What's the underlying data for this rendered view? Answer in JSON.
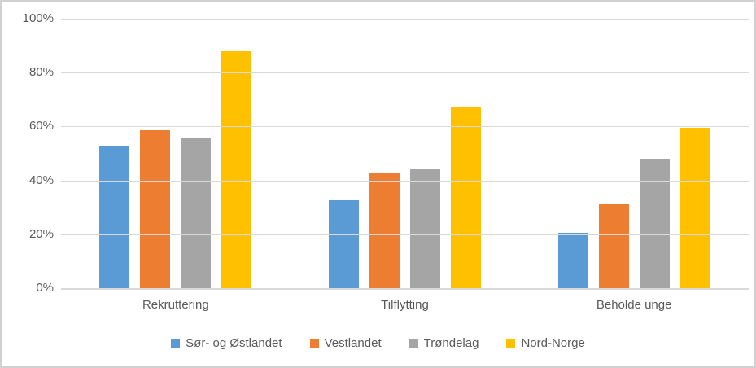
{
  "colors": {
    "plot_background": "#FFFFFF",
    "gridline": "#D9D9D9",
    "axis_line": "#D9D9D9",
    "text": "#595959",
    "frame_border": "#D2D0D0"
  },
  "chart_data": {
    "type": "bar",
    "title": "",
    "xlabel": "",
    "ylabel": "",
    "categories": [
      "Rekruttering",
      "Tilflytting",
      "Beholde unge"
    ],
    "series": [
      {
        "name": "Sør- og Østlandet",
        "color": "#5B9BD5",
        "values": [
          53,
          32.5,
          20.5
        ]
      },
      {
        "name": "Vestlandet",
        "color": "#ED7D31",
        "values": [
          58.5,
          43,
          31
        ]
      },
      {
        "name": "Trøndelag",
        "color": "#A5A5A5",
        "values": [
          55.5,
          44.5,
          48
        ]
      },
      {
        "name": "Nord-Norge",
        "color": "#FFC000",
        "values": [
          88,
          67,
          59.5
        ]
      }
    ],
    "ylim": [
      0,
      100
    ],
    "ytick_values": [
      100,
      80,
      60,
      40,
      20,
      0
    ],
    "ytick_labels": [
      "100%",
      "80%",
      "60%",
      "40%",
      "20%",
      "0%"
    ],
    "grid": true,
    "legend_position": "bottom"
  }
}
